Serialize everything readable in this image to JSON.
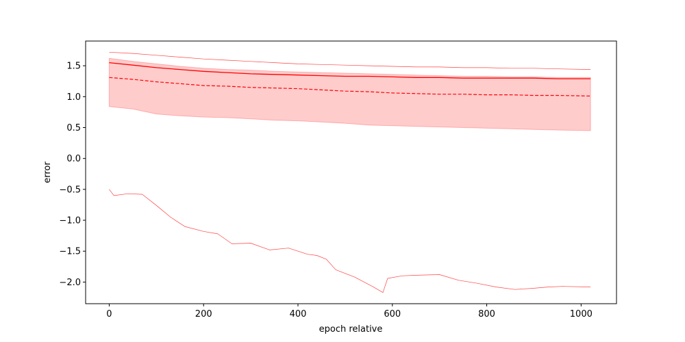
{
  "chart_data": {
    "type": "line",
    "title": "",
    "xlabel": "epoch relative",
    "ylabel": "error",
    "xlim": [
      -50,
      1075
    ],
    "ylim": [
      -2.35,
      1.9
    ],
    "grid": false,
    "legend": "none",
    "xticks": [
      0,
      200,
      400,
      600,
      800,
      1000
    ],
    "xtick_labels": [
      "0",
      "200",
      "400",
      "600",
      "800",
      "1000"
    ],
    "yticks": [
      1.5,
      1.0,
      0.5,
      0.0,
      -0.5,
      -1.0,
      -1.5,
      -2.0
    ],
    "ytick_labels": [
      "1.5",
      "1.0",
      "0.5",
      "0.0",
      "−0.5",
      "−1.0",
      "−1.5",
      "−2.0"
    ],
    "x": [
      0,
      50,
      100,
      150,
      200,
      250,
      300,
      350,
      400,
      450,
      500,
      550,
      600,
      650,
      700,
      750,
      800,
      850,
      900,
      950,
      1020
    ],
    "band": {
      "upper": [
        1.62,
        1.57,
        1.53,
        1.49,
        1.46,
        1.44,
        1.43,
        1.41,
        1.4,
        1.39,
        1.38,
        1.37,
        1.36,
        1.35,
        1.34,
        1.33,
        1.33,
        1.32,
        1.32,
        1.31,
        1.31
      ],
      "lower": [
        0.84,
        0.8,
        0.72,
        0.69,
        0.67,
        0.66,
        0.64,
        0.62,
        0.61,
        0.59,
        0.57,
        0.54,
        0.53,
        0.52,
        0.51,
        0.5,
        0.49,
        0.48,
        0.47,
        0.46,
        0.45
      ],
      "color": "#ff0000",
      "opacity": 0.2
    },
    "series": [
      {
        "style": "solid",
        "color": "#ff0000",
        "values": [
          1.55,
          1.51,
          1.47,
          1.44,
          1.41,
          1.39,
          1.37,
          1.36,
          1.35,
          1.34,
          1.33,
          1.33,
          1.32,
          1.31,
          1.31,
          1.3,
          1.3,
          1.3,
          1.3,
          1.29,
          1.29
        ]
      },
      {
        "style": "dashed",
        "color": "#ff0000",
        "values": [
          1.31,
          1.28,
          1.24,
          1.21,
          1.18,
          1.17,
          1.15,
          1.14,
          1.13,
          1.11,
          1.09,
          1.08,
          1.06,
          1.05,
          1.04,
          1.04,
          1.03,
          1.03,
          1.02,
          1.02,
          1.01
        ]
      },
      {
        "style": "thin",
        "color": "#ff0000",
        "values": [
          1.72,
          1.7,
          1.67,
          1.64,
          1.61,
          1.59,
          1.57,
          1.55,
          1.53,
          1.52,
          1.51,
          1.5,
          1.49,
          1.48,
          1.48,
          1.47,
          1.47,
          1.46,
          1.46,
          1.45,
          1.44
        ]
      },
      {
        "style": "thin",
        "color": "#ff0000",
        "x": [
          0,
          10,
          40,
          70,
          100,
          130,
          160,
          200,
          230,
          260,
          300,
          340,
          380,
          420,
          440,
          460,
          480,
          520,
          560,
          580,
          590,
          620,
          650,
          700,
          740,
          780,
          820,
          860,
          900,
          930,
          960,
          1020
        ],
        "values": [
          -0.5,
          -0.6,
          -0.57,
          -0.58,
          -0.76,
          -0.95,
          -1.1,
          -1.18,
          -1.22,
          -1.38,
          -1.37,
          -1.48,
          -1.45,
          -1.55,
          -1.57,
          -1.63,
          -1.8,
          -1.92,
          -2.08,
          -2.17,
          -1.94,
          -1.9,
          -1.89,
          -1.88,
          -1.97,
          -2.02,
          -2.08,
          -2.12,
          -2.1,
          -2.08,
          -2.07,
          -2.08
        ]
      }
    ]
  }
}
